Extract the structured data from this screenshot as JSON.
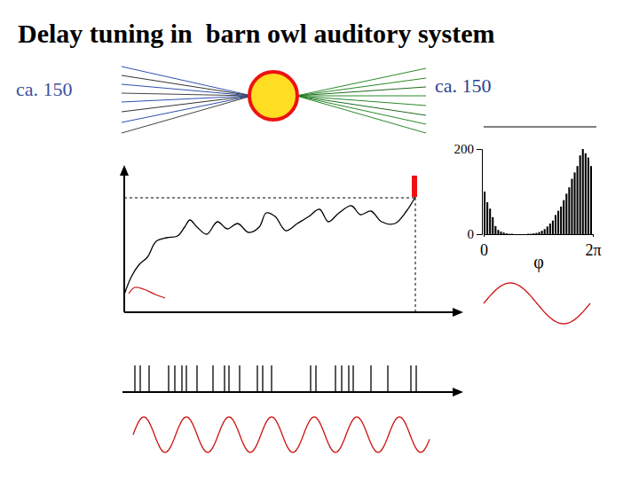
{
  "title": "Delay tuning in  barn owl auditory system",
  "inputs": {
    "left_label": "ca. 150",
    "right_label": "ca. 150"
  },
  "chart_data": {
    "type": "histogram",
    "xlabel": "φ",
    "color": "#000000",
    "bins": [
      0,
      0.157,
      0.314,
      0.471,
      0.628,
      0.785,
      0.942,
      1.1,
      1.257,
      1.414,
      1.571,
      1.728,
      1.885,
      2.042,
      2.199,
      2.356,
      2.513,
      2.67,
      2.827,
      2.985,
      3.142,
      3.299,
      3.456,
      3.613,
      3.77,
      3.927,
      4.084,
      4.241,
      4.398,
      4.555,
      4.712,
      4.869,
      5.027,
      5.184,
      5.341,
      5.498,
      5.655,
      5.812,
      5.969,
      6.126,
      6.283
    ],
    "counts": [
      100,
      75,
      60,
      40,
      19,
      10,
      6,
      4,
      2,
      1,
      1,
      0,
      0,
      0,
      0,
      0,
      1,
      1,
      2,
      3,
      5,
      8,
      12,
      18,
      25,
      32,
      45,
      55,
      65,
      80,
      95,
      110,
      130,
      145,
      160,
      185,
      200,
      190,
      180,
      160
    ],
    "xlim": [
      0,
      6.283
    ],
    "xticks": [
      0,
      {
        "value": 6.283,
        "label": "2π"
      }
    ],
    "ylim": [
      0,
      200
    ],
    "yticks": [
      0,
      200
    ]
  }
}
